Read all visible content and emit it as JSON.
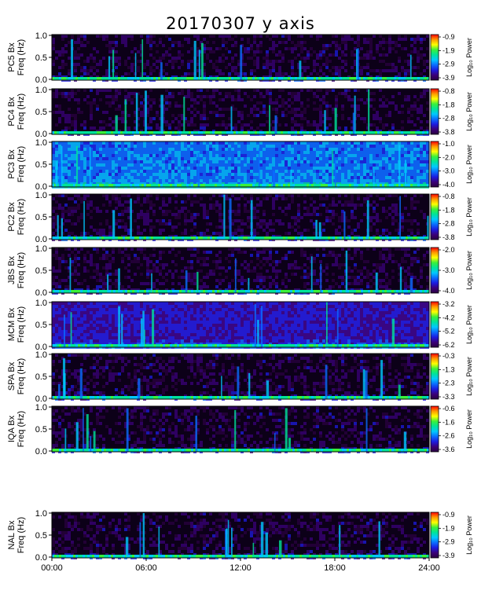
{
  "title": "20170307 y axis",
  "chart_data": {
    "type": "heatmap",
    "title": "20170307 y axis",
    "x_range": [
      "00:00",
      "24:00"
    ],
    "x_ticks": [
      "00:00",
      "06:00",
      "12:00",
      "18:00",
      "24:00"
    ],
    "y_range": [
      0,
      1.0
    ],
    "y_ticks": [
      "0.0",
      "0.5",
      "1.0"
    ],
    "colorbar_label": "Log₁₀ Power",
    "panels": [
      {
        "station": "PC5 Bx",
        "ylabel": "Freq (Hz)",
        "colorbar_ticks": [
          "-0.9",
          "-1.9",
          "-2.9",
          "-3.9"
        ],
        "colorbar_range": [
          -3.9,
          -0.9
        ]
      },
      {
        "station": "PC4 Bx",
        "ylabel": "Freq (Hz)",
        "colorbar_ticks": [
          "-0.8",
          "-1.8",
          "-2.8",
          "-3.8"
        ],
        "colorbar_range": [
          -3.8,
          -0.8
        ]
      },
      {
        "station": "PC3 Bx",
        "ylabel": "Freq (Hz)",
        "colorbar_ticks": [
          "-1.0",
          "-2.0",
          "-3.0",
          "-4.0"
        ],
        "colorbar_range": [
          -4.0,
          -1.0
        ]
      },
      {
        "station": "PC2 Bx",
        "ylabel": "Freq (Hz)",
        "colorbar_ticks": [
          "-0.8",
          "-1.8",
          "-2.8",
          "-3.8"
        ],
        "colorbar_range": [
          -3.8,
          -0.8
        ]
      },
      {
        "station": "JBS Bx",
        "ylabel": "Freq (Hz)",
        "colorbar_ticks": [
          "-2.0",
          "-3.0",
          "-4.0"
        ],
        "colorbar_range": [
          -4.0,
          -2.0
        ]
      },
      {
        "station": "MCM Bx",
        "ylabel": "Freq (Hz)",
        "colorbar_ticks": [
          "-3.2",
          "-4.2",
          "-5.2",
          "-6.2"
        ],
        "colorbar_range": [
          -6.2,
          -3.2
        ]
      },
      {
        "station": "SPA Bx",
        "ylabel": "Freq (Hz)",
        "colorbar_ticks": [
          "-0.3",
          "-1.3",
          "-2.3",
          "-3.3"
        ],
        "colorbar_range": [
          -3.3,
          -0.3
        ]
      },
      {
        "station": "IQA Bx",
        "ylabel": "Freq (Hz)",
        "colorbar_ticks": [
          "-0.6",
          "-1.6",
          "-2.6",
          "-3.6"
        ],
        "colorbar_range": [
          -3.6,
          -0.6
        ]
      },
      {
        "station": "NAL Bx",
        "ylabel": "Freq (Hz)",
        "colorbar_ticks": [
          "-0.9",
          "-1.9",
          "-2.9",
          "-3.9"
        ],
        "colorbar_range": [
          -3.9,
          -0.9
        ]
      }
    ]
  },
  "colors": {
    "colormap": [
      "#2a0040",
      "#3a007a",
      "#1c1ce0",
      "#0a6cff",
      "#00c8ff",
      "#00e39a",
      "#3af03a",
      "#ffff00",
      "#ff9a00",
      "#ff0000"
    ]
  }
}
